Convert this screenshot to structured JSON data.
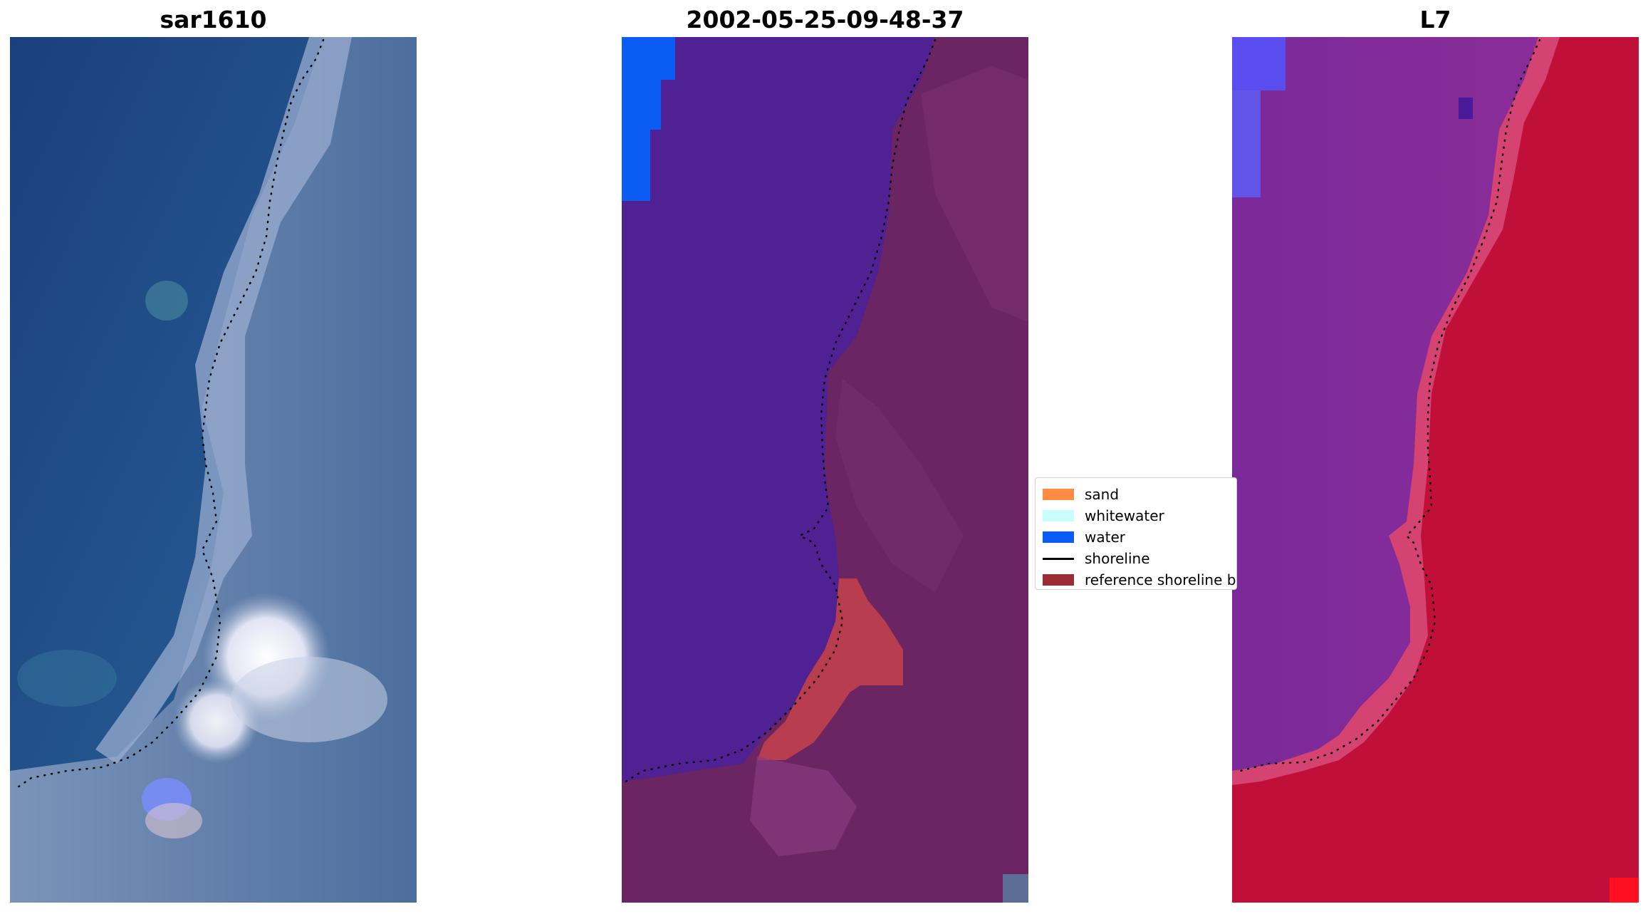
{
  "panels": [
    {
      "title": "sar1610"
    },
    {
      "title": "2002-05-25-09-48-37"
    },
    {
      "title": "L7"
    }
  ],
  "legend": {
    "items": [
      {
        "label": "sand",
        "type": "swatch",
        "color": "#ff8c42"
      },
      {
        "label": "whitewater",
        "type": "swatch",
        "color": "#c8fdfc"
      },
      {
        "label": "water",
        "type": "swatch",
        "color": "#0a5cf5"
      },
      {
        "label": "shoreline",
        "type": "line",
        "color": "#000000"
      },
      {
        "label": "reference shoreline buffer",
        "type": "swatch",
        "color": "#9b2b35"
      }
    ]
  },
  "colors": {
    "sar_water": "#1e4a8a",
    "sar_land": "#5b7ba8",
    "sar_bright": "#f4f2ff",
    "class_water": "#4f2193",
    "class_land": "#6a2562",
    "class_buffer": "#b83d4f",
    "class_pure_water": "#0a5cf5",
    "l7_water": "#7a2a9a",
    "l7_land": "#c0103a",
    "l7_pure_water": "#5555ff",
    "shoreline_dots": "#000000"
  }
}
